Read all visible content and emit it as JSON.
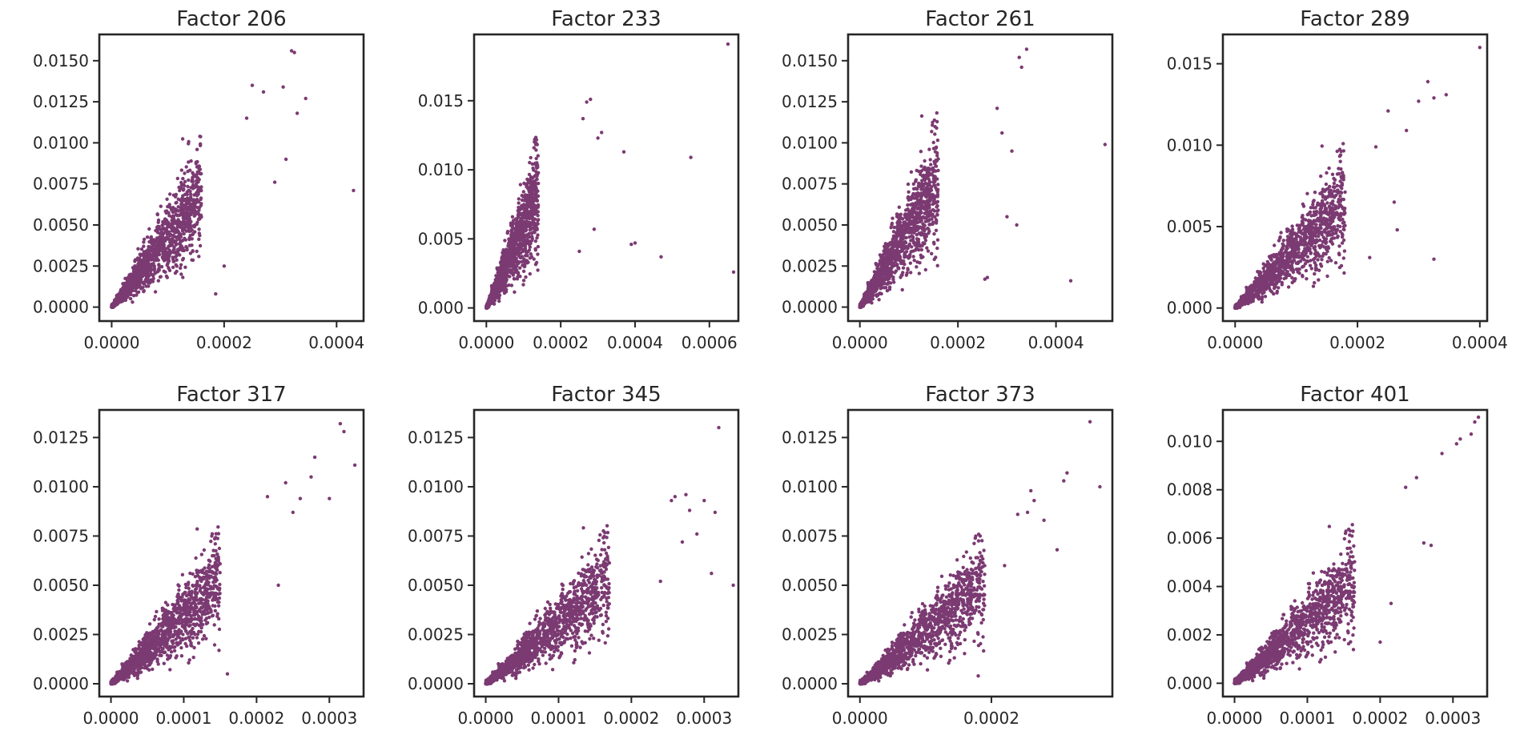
{
  "point_color": "#7b3a72",
  "chart_data": [
    {
      "type": "scatter",
      "title": "Factor 206",
      "xlim": [
        -2.2e-05,
        0.000448
      ],
      "ylim": [
        -0.00085,
        0.0166
      ],
      "xticks": [
        0,
        0.0002,
        0.0004
      ],
      "xtick_labels": [
        "0.0000",
        "0.0002",
        "0.0004"
      ],
      "yticks": [
        0,
        0.0025,
        0.005,
        0.0075,
        0.01,
        0.0125,
        0.015
      ],
      "ytick_labels": [
        "0.0000",
        "0.0025",
        "0.0050",
        "0.0075",
        "0.0100",
        "0.0125",
        "0.0150"
      ],
      "cloud": {
        "slope": 44,
        "x_max": 0.00016,
        "count": 1400
      },
      "outliers": [
        [
          0.00032,
          0.0156
        ],
        [
          0.000325,
          0.0155
        ],
        [
          0.000345,
          0.0127
        ],
        [
          0.00043,
          0.0071
        ],
        [
          0.00033,
          0.0118
        ],
        [
          0.000305,
          0.0134
        ],
        [
          0.00025,
          0.0135
        ],
        [
          0.00027,
          0.0131
        ],
        [
          0.00031,
          0.009
        ],
        [
          0.00029,
          0.0076
        ],
        [
          0.0002,
          0.0025
        ],
        [
          0.000185,
          0.0008
        ],
        [
          0.00024,
          0.0115
        ]
      ]
    },
    {
      "type": "scatter",
      "title": "Factor 233",
      "xlim": [
        -3.3e-05,
        0.000678
      ],
      "ylim": [
        -0.00095,
        0.0198
      ],
      "xticks": [
        0,
        0.0002,
        0.0004,
        0.0006
      ],
      "xtick_labels": [
        "0.0000",
        "0.0002",
        "0.0004",
        "0.0006"
      ],
      "yticks": [
        0,
        0.005,
        0.01,
        0.015
      ],
      "ytick_labels": [
        "0.000",
        "0.005",
        "0.010",
        "0.015"
      ],
      "cloud": {
        "slope": 62,
        "x_max": 0.00014,
        "count": 1400
      },
      "outliers": [
        [
          0.00065,
          0.0191
        ],
        [
          0.000665,
          0.0026
        ],
        [
          0.00055,
          0.0109
        ],
        [
          0.00047,
          0.0037
        ],
        [
          0.0004,
          0.0047
        ],
        [
          0.00039,
          0.0046
        ],
        [
          0.00037,
          0.0113
        ],
        [
          0.00028,
          0.0151
        ],
        [
          0.00027,
          0.0149
        ],
        [
          0.00031,
          0.0127
        ],
        [
          0.0003,
          0.0123
        ],
        [
          0.00026,
          0.0137
        ],
        [
          0.00029,
          0.0057
        ],
        [
          0.00025,
          0.0041
        ]
      ]
    },
    {
      "type": "scatter",
      "title": "Factor 261",
      "xlim": [
        -2.4e-05,
        0.000515
      ],
      "ylim": [
        -0.00085,
        0.0166
      ],
      "xticks": [
        0,
        0.0002,
        0.0004
      ],
      "xtick_labels": [
        "0.0000",
        "0.0002",
        "0.0004"
      ],
      "yticks": [
        0,
        0.0025,
        0.005,
        0.0075,
        0.01,
        0.0125,
        0.015
      ],
      "ytick_labels": [
        "0.0000",
        "0.0025",
        "0.0050",
        "0.0075",
        "0.0100",
        "0.0125",
        "0.0150"
      ],
      "cloud": {
        "slope": 50,
        "x_max": 0.00016,
        "count": 1400
      },
      "outliers": [
        [
          0.00034,
          0.0157
        ],
        [
          0.00033,
          0.0146
        ],
        [
          0.000325,
          0.0152
        ],
        [
          0.0005,
          0.0099
        ],
        [
          0.00043,
          0.0016
        ],
        [
          0.00028,
          0.0121
        ],
        [
          0.00026,
          0.0018
        ],
        [
          0.000255,
          0.0017
        ],
        [
          0.0003,
          0.0055
        ],
        [
          0.00032,
          0.005
        ],
        [
          0.00029,
          0.0106
        ],
        [
          0.00031,
          0.0095
        ]
      ]
    },
    {
      "type": "scatter",
      "title": "Factor 289",
      "xlim": [
        -2e-05,
        0.000412
      ],
      "ylim": [
        -0.0008,
        0.0168
      ],
      "xticks": [
        0,
        0.0002,
        0.0004
      ],
      "xtick_labels": [
        "0.0000",
        "0.0002",
        "0.0004"
      ],
      "yticks": [
        0,
        0.005,
        0.01,
        0.015
      ],
      "ytick_labels": [
        "0.000",
        "0.005",
        "0.010",
        "0.015"
      ],
      "cloud": {
        "slope": 38,
        "x_max": 0.00018,
        "count": 1400
      },
      "outliers": [
        [
          0.0004,
          0.016
        ],
        [
          0.000315,
          0.0139
        ],
        [
          0.000345,
          0.0131
        ],
        [
          0.000325,
          0.0129
        ],
        [
          0.0003,
          0.0127
        ],
        [
          0.000325,
          0.003
        ],
        [
          0.00025,
          0.0121
        ],
        [
          0.00028,
          0.0109
        ],
        [
          0.00026,
          0.0065
        ],
        [
          0.000265,
          0.0048
        ],
        [
          0.00023,
          0.0099
        ],
        [
          0.00022,
          0.0031
        ]
      ]
    },
    {
      "type": "scatter",
      "title": "Factor 317",
      "xlim": [
        -1.6e-05,
        0.000347
      ],
      "ylim": [
        -0.00065,
        0.0139
      ],
      "xticks": [
        0,
        0.0001,
        0.0002,
        0.0003
      ],
      "xtick_labels": [
        "0.0000",
        "0.0001",
        "0.0002",
        "0.0003"
      ],
      "yticks": [
        0,
        0.0025,
        0.005,
        0.0075,
        0.01,
        0.0125
      ],
      "ytick_labels": [
        "0.0000",
        "0.0025",
        "0.0050",
        "0.0075",
        "0.0100",
        "0.0125"
      ],
      "cloud": {
        "slope": 36,
        "x_max": 0.00015,
        "count": 1400
      },
      "outliers": [
        [
          0.000315,
          0.0132
        ],
        [
          0.00032,
          0.0128
        ],
        [
          0.000335,
          0.0111
        ],
        [
          0.0003,
          0.0094
        ],
        [
          0.00028,
          0.0115
        ],
        [
          0.000275,
          0.0105
        ],
        [
          0.00026,
          0.0094
        ],
        [
          0.00025,
          0.0087
        ],
        [
          0.00024,
          0.0102
        ],
        [
          0.00023,
          0.005
        ],
        [
          0.000215,
          0.0095
        ],
        [
          0.00016,
          0.0005
        ]
      ]
    },
    {
      "type": "scatter",
      "title": "Factor 345",
      "xlim": [
        -1.6e-05,
        0.000347
      ],
      "ylim": [
        -0.00065,
        0.0139
      ],
      "xticks": [
        0,
        0.0001,
        0.0002,
        0.0003
      ],
      "xtick_labels": [
        "0.0000",
        "0.0001",
        "0.0002",
        "0.0003"
      ],
      "yticks": [
        0,
        0.0025,
        0.005,
        0.0075,
        0.01,
        0.0125
      ],
      "ytick_labels": [
        "0.0000",
        "0.0025",
        "0.0050",
        "0.0075",
        "0.0100",
        "0.0125"
      ],
      "cloud": {
        "slope": 32,
        "x_max": 0.00017,
        "count": 1400
      },
      "outliers": [
        [
          0.00032,
          0.013
        ],
        [
          0.000315,
          0.0087
        ],
        [
          0.00034,
          0.005
        ],
        [
          0.00031,
          0.0056
        ],
        [
          0.00026,
          0.0095
        ],
        [
          0.000275,
          0.0096
        ],
        [
          0.000255,
          0.0093
        ],
        [
          0.0003,
          0.0093
        ],
        [
          0.00028,
          0.0088
        ],
        [
          0.00027,
          0.0072
        ],
        [
          0.00029,
          0.0076
        ],
        [
          0.00024,
          0.0052
        ]
      ]
    },
    {
      "type": "scatter",
      "title": "Factor 373",
      "xlim": [
        -1.8e-05,
        0.000384
      ],
      "ylim": [
        -0.00065,
        0.0139
      ],
      "xticks": [
        0,
        0.0002
      ],
      "xtick_labels": [
        "0.0000",
        "0.0002"
      ],
      "yticks": [
        0,
        0.0025,
        0.005,
        0.0075,
        0.01,
        0.0125
      ],
      "ytick_labels": [
        "0.0000",
        "0.0025",
        "0.0050",
        "0.0075",
        "0.0100",
        "0.0125"
      ],
      "cloud": {
        "slope": 28,
        "x_max": 0.00019,
        "count": 1400
      },
      "outliers": [
        [
          0.00035,
          0.0133
        ],
        [
          0.000365,
          0.01
        ],
        [
          0.000315,
          0.0107
        ],
        [
          0.00031,
          0.0103
        ],
        [
          0.0003,
          0.0068
        ],
        [
          0.00026,
          0.0098
        ],
        [
          0.000265,
          0.0093
        ],
        [
          0.000255,
          0.0087
        ],
        [
          0.00028,
          0.0083
        ],
        [
          0.00024,
          0.0086
        ],
        [
          0.00022,
          0.006
        ],
        [
          0.00018,
          0.0004
        ]
      ]
    },
    {
      "type": "scatter",
      "title": "Factor 401",
      "xlim": [
        -1.6e-05,
        0.000347
      ],
      "ylim": [
        -0.00055,
        0.0113
      ],
      "xticks": [
        0,
        0.0001,
        0.0002,
        0.0003
      ],
      "xtick_labels": [
        "0.0000",
        "0.0001",
        "0.0002",
        "0.0003"
      ],
      "yticks": [
        0,
        0.002,
        0.004,
        0.006,
        0.008,
        0.01
      ],
      "ytick_labels": [
        "0.000",
        "0.002",
        "0.004",
        "0.006",
        "0.008",
        "0.010"
      ],
      "cloud": {
        "slope": 27,
        "x_max": 0.000165,
        "count": 1400
      },
      "outliers": [
        [
          0.000335,
          0.011
        ],
        [
          0.00033,
          0.0108
        ],
        [
          0.000325,
          0.0103
        ],
        [
          0.00031,
          0.0101
        ],
        [
          0.000305,
          0.0099
        ],
        [
          0.000285,
          0.0095
        ],
        [
          0.00027,
          0.0057
        ],
        [
          0.00026,
          0.0058
        ],
        [
          0.00025,
          0.0085
        ],
        [
          0.000235,
          0.0081
        ],
        [
          0.000215,
          0.0033
        ],
        [
          0.0002,
          0.0017
        ]
      ]
    }
  ]
}
